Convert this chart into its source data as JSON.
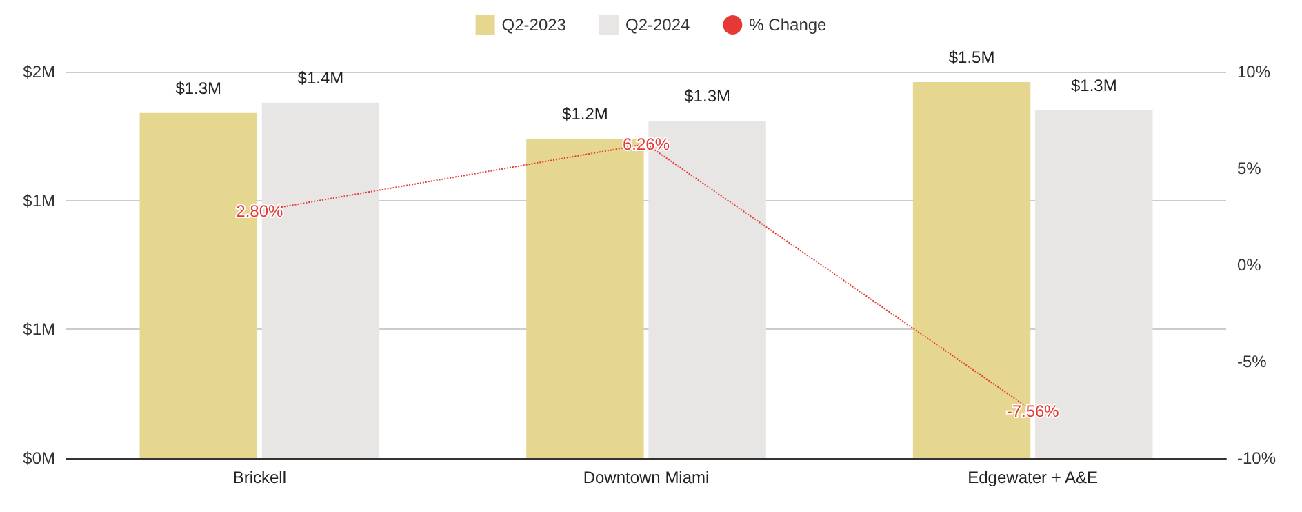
{
  "chart_data": {
    "type": "bar",
    "categories": [
      "Brickell",
      "Downtown Miami",
      "Edgewater + A&E"
    ],
    "series": [
      {
        "name": "Q2-2023",
        "color": "#e5d78f",
        "values": [
          1.34,
          1.24,
          1.46
        ],
        "value_labels": [
          "$1.3M",
          "$1.2M",
          "$1.5M"
        ]
      },
      {
        "name": "Q2-2024",
        "color": "#e7e6e5",
        "values": [
          1.38,
          1.31,
          1.35
        ],
        "value_labels": [
          "$1.4M",
          "$1.3M",
          "$1.3M"
        ]
      },
      {
        "name": "% Change",
        "type": "line",
        "axis": "y2",
        "color": "#e53935",
        "line_style": "dotted",
        "marker": "none",
        "values": [
          2.8,
          6.26,
          -7.56
        ],
        "value_labels": [
          "2.80%",
          "6.26%",
          "-7.56%"
        ]
      }
    ],
    "ylim": [
      0,
      1.5
    ],
    "yticks": [
      {
        "value": 0,
        "label": "$0M"
      },
      {
        "value": 0.5,
        "label": "$1M"
      },
      {
        "value": 1,
        "label": "$1M"
      },
      {
        "value": 1.5,
        "label": "$2M"
      }
    ],
    "y2lim": [
      -10,
      10
    ],
    "y2ticks": [
      {
        "value": -10,
        "label": "-10%"
      },
      {
        "value": -5,
        "label": "-5%"
      },
      {
        "value": 0,
        "label": "0%"
      },
      {
        "value": 5,
        "label": "5%"
      },
      {
        "value": 10,
        "label": "10%"
      }
    ],
    "grid": "y",
    "legend": "top"
  }
}
